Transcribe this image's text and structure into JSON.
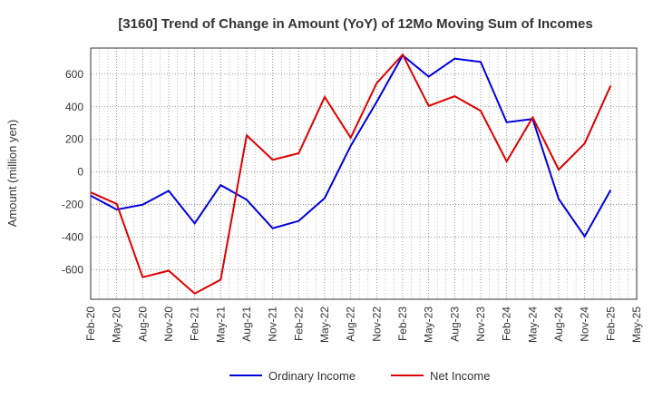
{
  "chart_data": {
    "type": "line",
    "title": "[3160]  Trend of Change in Amount (YoY) of 12Mo Moving Sum of Incomes",
    "ylabel": "Amount (million yen)",
    "xlabel": "",
    "ylim": [
      -780,
      760
    ],
    "yticks": [
      -600,
      -400,
      -200,
      0,
      200,
      400,
      600
    ],
    "xtick_labels": [
      "Feb-20",
      "May-20",
      "Aug-20",
      "Nov-20",
      "Feb-21",
      "May-21",
      "Aug-21",
      "Nov-21",
      "Feb-22",
      "May-22",
      "Aug-22",
      "Nov-22",
      "Feb-23",
      "May-23",
      "Aug-23",
      "Nov-23",
      "Feb-24",
      "May-24",
      "Aug-24",
      "Nov-24",
      "Feb-25",
      "May-25"
    ],
    "x": [
      "Feb-20",
      "May-20",
      "Aug-20",
      "Nov-20",
      "Feb-21",
      "May-21",
      "Aug-21",
      "Nov-21",
      "Feb-22",
      "May-22",
      "Aug-22",
      "Nov-22",
      "Feb-23",
      "May-23",
      "Aug-23",
      "Nov-23",
      "Feb-24",
      "May-24",
      "Aug-24",
      "Nov-24",
      "Feb-25"
    ],
    "grid": true,
    "legend_position": "bottom-center",
    "series": [
      {
        "name": "Ordinary Income",
        "color": "#0000dd",
        "values": [
          -145,
          -230,
          -200,
          -115,
          -315,
          -80,
          -170,
          -345,
          -300,
          -160,
          160,
          430,
          715,
          585,
          695,
          675,
          305,
          325,
          -165,
          -395,
          -110
        ]
      },
      {
        "name": "Net Income",
        "color": "#dd0000",
        "values": [
          -125,
          -195,
          -645,
          -605,
          -745,
          -660,
          225,
          75,
          115,
          460,
          210,
          545,
          720,
          405,
          465,
          375,
          65,
          335,
          15,
          175,
          530
        ]
      }
    ]
  }
}
